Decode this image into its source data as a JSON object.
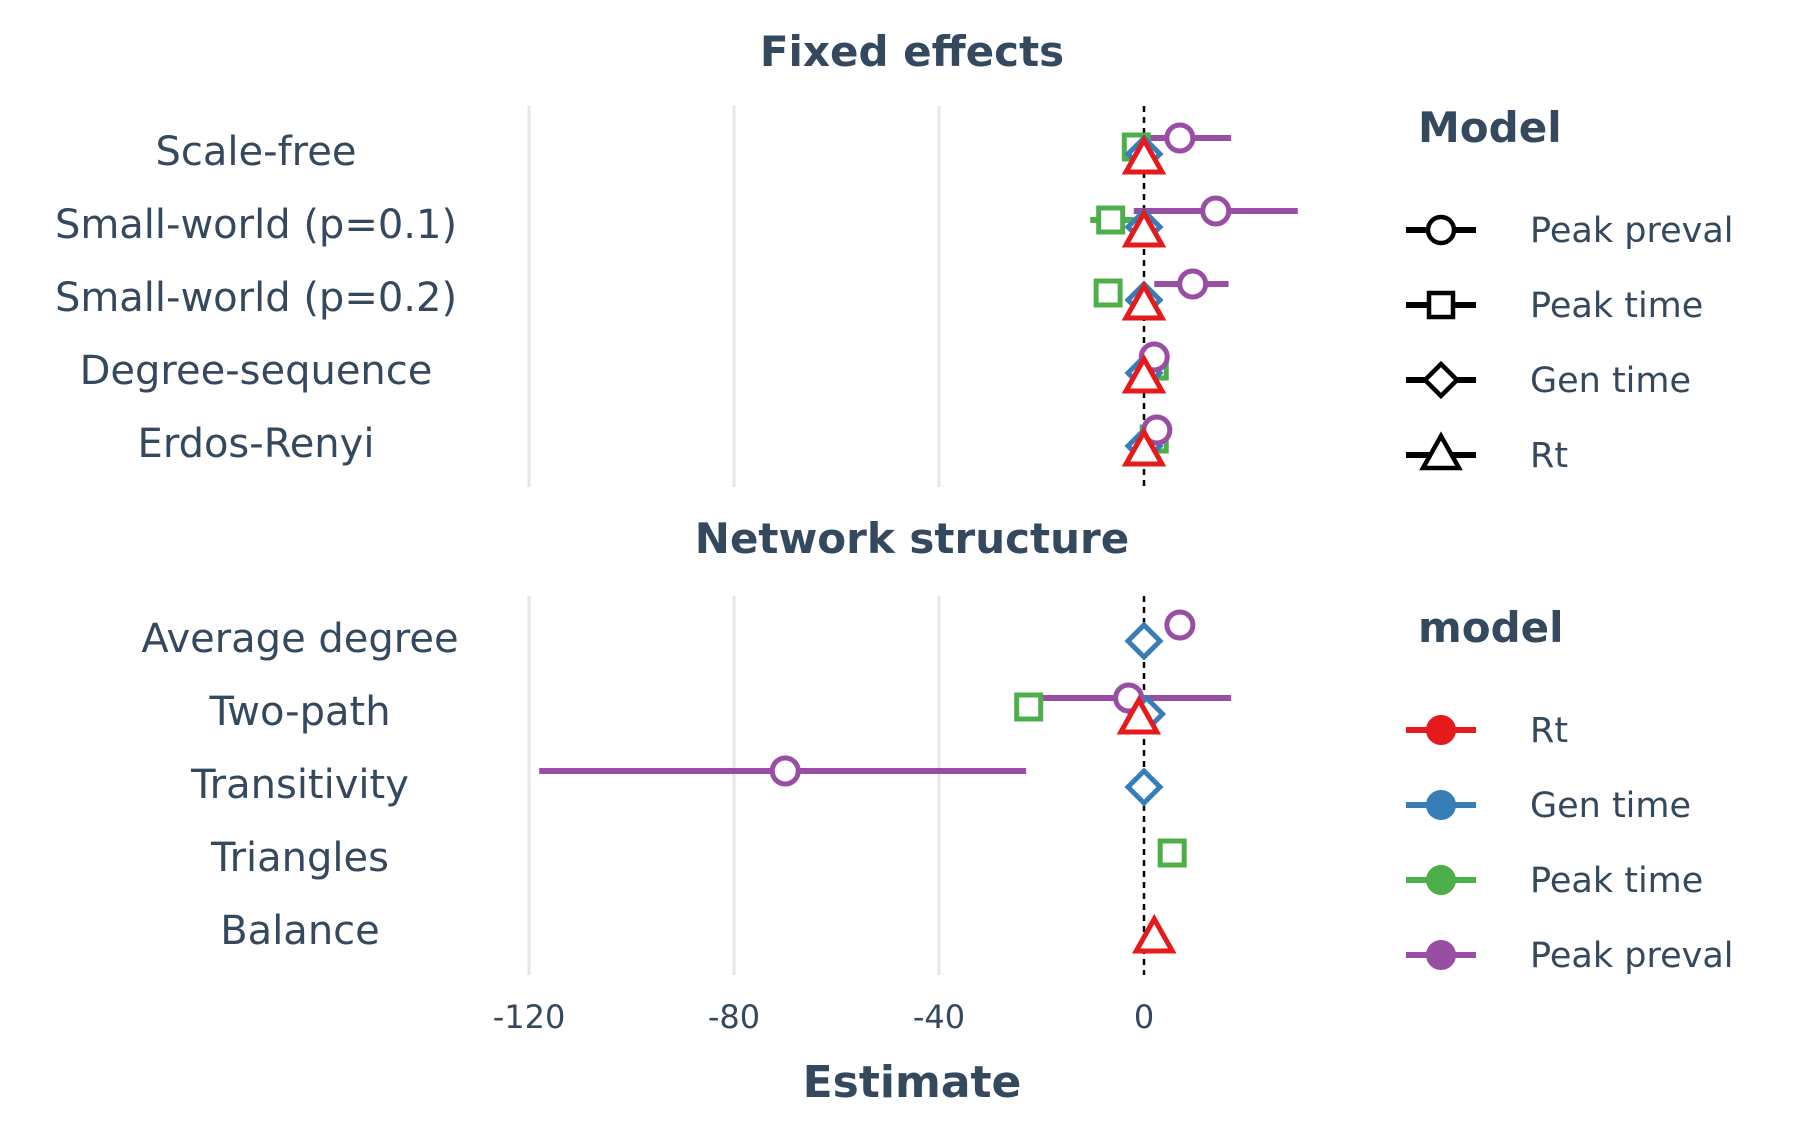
{
  "chart_data": {
    "type": "scatter",
    "subtype": "forest-plot",
    "xlabel": "Estimate",
    "xlim": [
      -125,
      35
    ],
    "xticks": [
      -120,
      -80,
      -40,
      0
    ],
    "reference_line": 0,
    "grid": "vertical major",
    "panels": [
      {
        "title": "Fixed effects",
        "categories": [
          "Scale-free",
          "Small-world (p=0.1)",
          "Small-world (p=0.2)",
          "Degree-sequence",
          "Erdos-Renyi"
        ],
        "series": [
          {
            "name": "Peak preval",
            "shape": "circle",
            "points": [
              {
                "category": "Scale-free",
                "estimate": 7,
                "lo": 0,
                "hi": 17
              },
              {
                "category": "Small-world (p=0.1)",
                "estimate": 14,
                "lo": -2,
                "hi": 30
              },
              {
                "category": "Small-world (p=0.2)",
                "estimate": 9.5,
                "lo": 2,
                "hi": 16.5
              },
              {
                "category": "Degree-sequence",
                "estimate": 2
              },
              {
                "category": "Erdos-Renyi",
                "estimate": 2.5
              }
            ]
          },
          {
            "name": "Peak time",
            "shape": "square",
            "points": [
              {
                "category": "Scale-free",
                "estimate": -1.5
              },
              {
                "category": "Small-world (p=0.1)",
                "estimate": -6.5,
                "lo": -10.5,
                "hi": -2
              },
              {
                "category": "Small-world (p=0.2)",
                "estimate": -7
              },
              {
                "category": "Degree-sequence",
                "estimate": 2
              },
              {
                "category": "Erdos-Renyi",
                "estimate": 2
              }
            ]
          },
          {
            "name": "Gen time",
            "shape": "diamond",
            "points": [
              {
                "category": "Scale-free",
                "estimate": 0
              },
              {
                "category": "Small-world (p=0.1)",
                "estimate": 0
              },
              {
                "category": "Small-world (p=0.2)",
                "estimate": 0
              },
              {
                "category": "Degree-sequence",
                "estimate": 0
              },
              {
                "category": "Erdos-Renyi",
                "estimate": 0
              }
            ]
          },
          {
            "name": "Rt",
            "shape": "triangle",
            "points": [
              {
                "category": "Scale-free",
                "estimate": 0
              },
              {
                "category": "Small-world (p=0.1)",
                "estimate": 0
              },
              {
                "category": "Small-world (p=0.2)",
                "estimate": 0
              },
              {
                "category": "Degree-sequence",
                "estimate": 0
              },
              {
                "category": "Erdos-Renyi",
                "estimate": 0
              }
            ]
          }
        ]
      },
      {
        "title": "Network structure",
        "categories": [
          "Average degree",
          "Two-path",
          "Transitivity",
          "Triangles",
          "Balance"
        ],
        "series": [
          {
            "name": "Peak preval",
            "shape": "circle",
            "points": [
              {
                "category": "Average degree",
                "estimate": 7
              },
              {
                "category": "Two-path",
                "estimate": -3,
                "lo": -20,
                "hi": 17
              },
              {
                "category": "Transitivity",
                "estimate": -70,
                "lo": -118,
                "hi": -23
              }
            ]
          },
          {
            "name": "Peak time",
            "shape": "square",
            "points": [
              {
                "category": "Two-path",
                "estimate": -22.5
              },
              {
                "category": "Triangles",
                "estimate": 5.5
              }
            ]
          },
          {
            "name": "Gen time",
            "shape": "diamond",
            "points": [
              {
                "category": "Average degree",
                "estimate": 0
              },
              {
                "category": "Two-path",
                "estimate": 0.5
              },
              {
                "category": "Transitivity",
                "estimate": 0
              }
            ]
          },
          {
            "name": "Rt",
            "shape": "triangle",
            "points": [
              {
                "category": "Two-path",
                "estimate": -1
              },
              {
                "category": "Balance",
                "estimate": 2
              }
            ]
          }
        ]
      }
    ],
    "legends": [
      {
        "title": "Model",
        "kind": "shape",
        "items": [
          {
            "label": "Peak preval",
            "shape": "circle"
          },
          {
            "label": "Peak time",
            "shape": "square"
          },
          {
            "label": "Gen time",
            "shape": "diamond"
          },
          {
            "label": "Rt",
            "shape": "triangle"
          }
        ]
      },
      {
        "title": "model",
        "kind": "color",
        "items": [
          {
            "label": "Rt",
            "color": "#e41a1c"
          },
          {
            "label": "Gen time",
            "color": "#377eb8"
          },
          {
            "label": "Peak time",
            "color": "#4daf4a"
          },
          {
            "label": "Peak preval",
            "color": "#984ea3"
          }
        ]
      }
    ],
    "colors": {
      "Rt": "#e41a1c",
      "Gen time": "#377eb8",
      "Peak time": "#4daf4a",
      "Peak preval": "#984ea3",
      "text": "#34495e",
      "grid": "#e6e6e6"
    }
  }
}
